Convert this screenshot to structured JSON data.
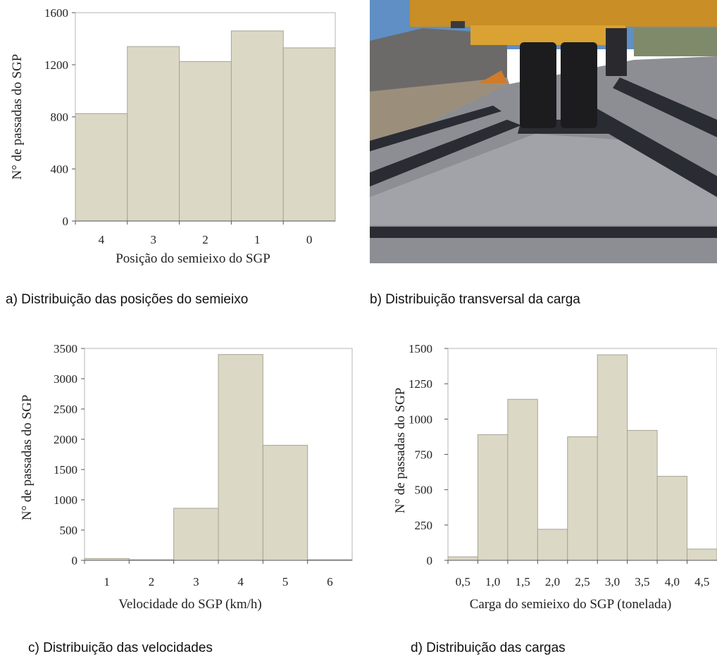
{
  "charts": [
    {
      "id": "a",
      "caption": "a) Distribuição das posições do semieixo",
      "chart_data": {
        "type": "bar",
        "categories": [
          "4",
          "3",
          "2",
          "1",
          "0"
        ],
        "values": [
          825,
          1340,
          1225,
          1460,
          1330
        ],
        "xlabel": "Posição do semieixo do SGP",
        "ylabel": "N° de passadas do SGP",
        "ylim": [
          0,
          1600
        ],
        "yticks": [
          0,
          400,
          800,
          1200,
          1600
        ]
      }
    },
    {
      "id": "c",
      "caption": "c) Distribuição das velocidades",
      "chart_data": {
        "type": "bar",
        "categories": [
          "1",
          "2",
          "3",
          "4",
          "5",
          "6"
        ],
        "values": [
          30,
          10,
          860,
          3400,
          1900,
          10
        ],
        "xlabel": "Velocidade do SGP (km/h)",
        "ylabel": "N° de passadas do SGP",
        "ylim": [
          0,
          3500
        ],
        "yticks": [
          0,
          500,
          1000,
          1500,
          2000,
          2500,
          3000,
          3500
        ]
      }
    },
    {
      "id": "d",
      "caption": "d) Distribuição das cargas",
      "chart_data": {
        "type": "bar",
        "categories": [
          "0,5",
          "1,0",
          "1,5",
          "2,0",
          "2,5",
          "3,0",
          "3,5",
          "4,0",
          "4,5"
        ],
        "values": [
          25,
          890,
          1140,
          220,
          875,
          1455,
          920,
          595,
          80
        ],
        "xlabel": "Carga do semieixo do SGP (tonelada)",
        "ylabel": "N° de passadas do SGP",
        "ylim": [
          0,
          1500
        ],
        "yticks": [
          0,
          250,
          500,
          750,
          1000,
          1250,
          1500
        ]
      }
    }
  ],
  "photo": {
    "caption": "b) Distribuição transversal da carga",
    "colors": {
      "sky": "#5f8fc4",
      "asphalt": "#8c8e93",
      "shadow": "#2a2c33",
      "truck_body": "#d49a2a",
      "gravel": "#6b6a69",
      "tire": "#1c1c1f"
    }
  }
}
